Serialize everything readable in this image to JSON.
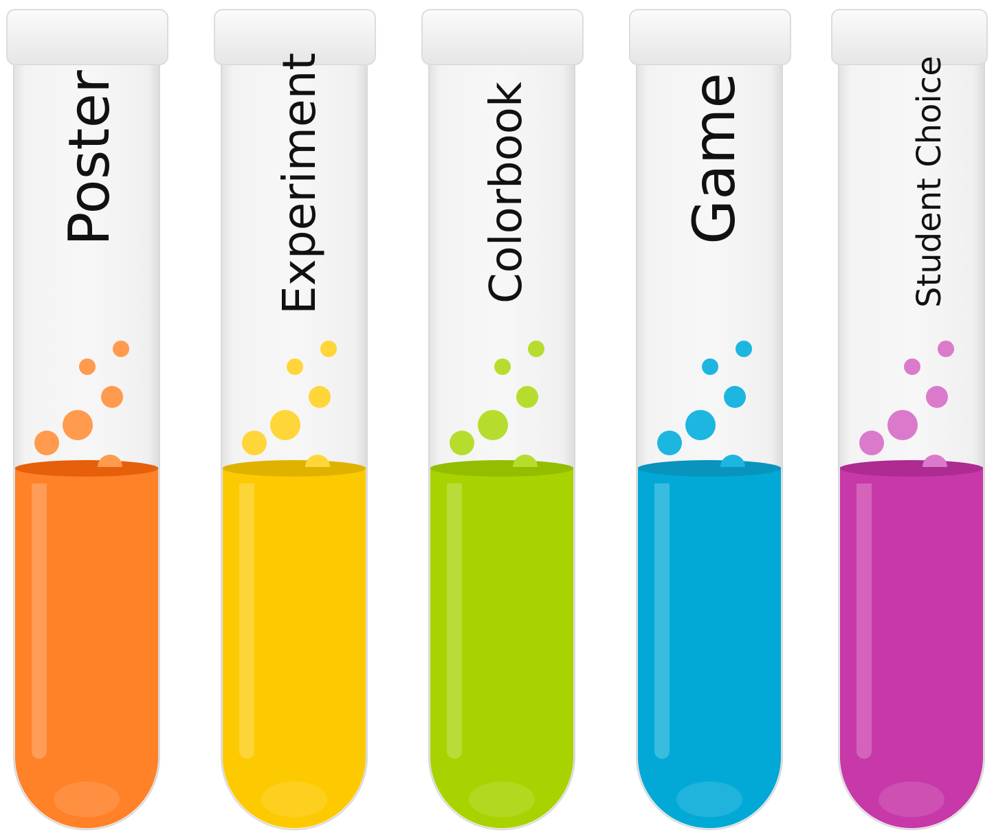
{
  "tubes": [
    {
      "label": "Poster",
      "color": "#FF8128",
      "bubble_color": "#FF9A4E",
      "surface_color": "#E65F0A"
    },
    {
      "label": "Experiment",
      "color": "#FDCA02",
      "bubble_color": "#FFD63A",
      "surface_color": "#E0B200"
    },
    {
      "label": "Colorbook",
      "color": "#A8D300",
      "bubble_color": "#B6DD2E",
      "surface_color": "#93BD00"
    },
    {
      "label": "Game",
      "color": "#02A9D6",
      "bubble_color": "#1CB6E0",
      "surface_color": "#0894BD"
    },
    {
      "label": "Student Choice",
      "color": "#C738A8",
      "bubble_color": "#DB7ACB",
      "surface_color": "#AE2B92"
    }
  ]
}
